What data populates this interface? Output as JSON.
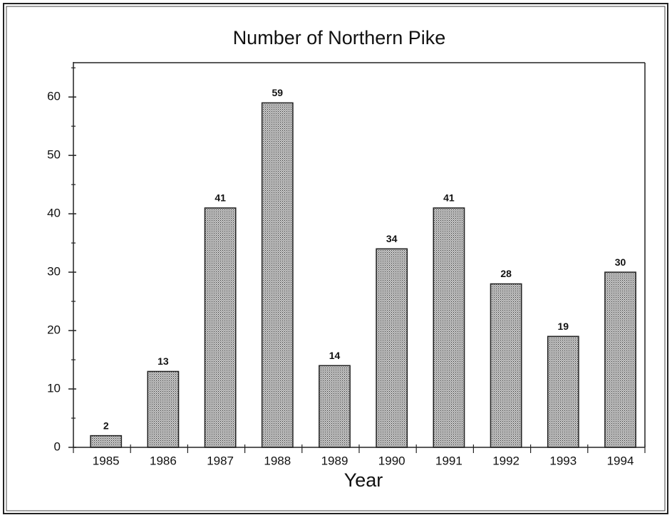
{
  "chart_data": {
    "type": "bar",
    "title": "Number of Northern Pike",
    "xlabel": "Year",
    "categories": [
      "1985",
      "1986",
      "1987",
      "1988",
      "1989",
      "1990",
      "1991",
      "1992",
      "1993",
      "1994"
    ],
    "values": [
      2,
      13,
      41,
      59,
      14,
      34,
      41,
      28,
      19,
      30
    ],
    "color": "#9a9a9a",
    "ylim": [
      0,
      66
    ],
    "yticks": [
      0,
      10,
      20,
      30,
      40,
      50,
      60
    ],
    "yminorticks": [
      5,
      15,
      25,
      35,
      45,
      55,
      65
    ],
    "grid": false
  }
}
